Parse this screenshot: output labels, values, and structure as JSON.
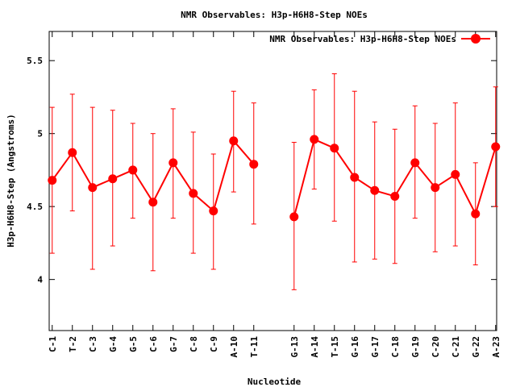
{
  "chart_data": {
    "type": "line",
    "title": "NMR Observables: H3p-H6H8-Step NOEs",
    "xlabel": "Nucleotide",
    "ylabel": "H3p-H6H8-Step (Angstroms)",
    "ylim": [
      3.65,
      5.7
    ],
    "yticks": [
      "4",
      "4.5",
      "5",
      "5.5"
    ],
    "legend_position": "top-right",
    "grid": false,
    "series": [
      {
        "name": "NMR Observables: H3p-H6H8-Step NOEs",
        "color": "#ff0000",
        "marker": "circle",
        "points": [
          {
            "label": "C-1",
            "idx": 1,
            "y": 4.68,
            "lo": 4.18,
            "hi": 5.18
          },
          {
            "label": "T-2",
            "idx": 2,
            "y": 4.87,
            "lo": 4.47,
            "hi": 5.27
          },
          {
            "label": "C-3",
            "idx": 3,
            "y": 4.63,
            "lo": 4.07,
            "hi": 5.18
          },
          {
            "label": "G-4",
            "idx": 4,
            "y": 4.69,
            "lo": 4.23,
            "hi": 5.16
          },
          {
            "label": "G-5",
            "idx": 5,
            "y": 4.75,
            "lo": 4.42,
            "hi": 5.07
          },
          {
            "label": "C-6",
            "idx": 6,
            "y": 4.53,
            "lo": 4.06,
            "hi": 5.0
          },
          {
            "label": "G-7",
            "idx": 7,
            "y": 4.8,
            "lo": 4.42,
            "hi": 5.17
          },
          {
            "label": "C-8",
            "idx": 8,
            "y": 4.59,
            "lo": 4.18,
            "hi": 5.01
          },
          {
            "label": "C-9",
            "idx": 9,
            "y": 4.47,
            "lo": 4.07,
            "hi": 4.86
          },
          {
            "label": "A-10",
            "idx": 10,
            "y": 4.95,
            "lo": 4.6,
            "hi": 5.29
          },
          {
            "label": "T-11",
            "idx": 11,
            "y": 4.79,
            "lo": 4.38,
            "hi": 5.21
          },
          {
            "label": "G-13",
            "idx": 13,
            "y": 4.43,
            "lo": 3.93,
            "hi": 4.94
          },
          {
            "label": "A-14",
            "idx": 14,
            "y": 4.96,
            "lo": 4.62,
            "hi": 5.3
          },
          {
            "label": "T-15",
            "idx": 15,
            "y": 4.9,
            "lo": 4.4,
            "hi": 5.41
          },
          {
            "label": "G-16",
            "idx": 16,
            "y": 4.7,
            "lo": 4.12,
            "hi": 5.29
          },
          {
            "label": "G-17",
            "idx": 17,
            "y": 4.61,
            "lo": 4.14,
            "hi": 5.08
          },
          {
            "label": "C-18",
            "idx": 18,
            "y": 4.57,
            "lo": 4.11,
            "hi": 5.03
          },
          {
            "label": "G-19",
            "idx": 19,
            "y": 4.8,
            "lo": 4.42,
            "hi": 5.19
          },
          {
            "label": "C-20",
            "idx": 20,
            "y": 4.63,
            "lo": 4.19,
            "hi": 5.07
          },
          {
            "label": "C-21",
            "idx": 21,
            "y": 4.72,
            "lo": 4.23,
            "hi": 5.21
          },
          {
            "label": "G-22",
            "idx": 22,
            "y": 4.45,
            "lo": 4.1,
            "hi": 4.8
          },
          {
            "label": "A-23",
            "idx": 23,
            "y": 4.91,
            "lo": 4.5,
            "hi": 5.32
          }
        ]
      }
    ]
  }
}
